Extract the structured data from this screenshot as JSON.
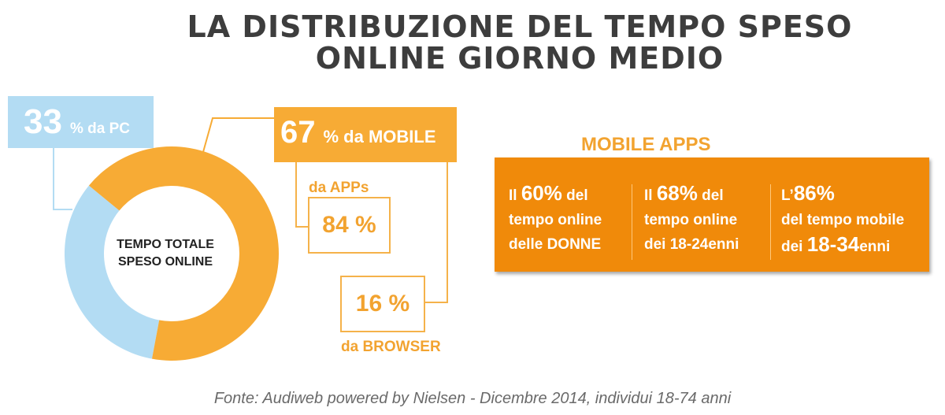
{
  "title": {
    "line1": "LA DISTRIBUZIONE DEL TEMPO SPESO",
    "line2": "ONLINE GIORNO MEDIO"
  },
  "chart_data": [
    {
      "type": "pie",
      "subtype": "donut",
      "center_label_line1": "TEMPO TOTALE",
      "center_label_line2": "SPESO ONLINE",
      "slices": [
        {
          "label": "% da PC",
          "value": 33,
          "value_text": "33",
          "color": "#b3dcf3"
        },
        {
          "label": "% da MOBILE",
          "value": 67,
          "value_text": "67",
          "color": "#f7ab35"
        }
      ]
    },
    {
      "type": "table",
      "parent": "da MOBILE",
      "rows": [
        {
          "label": "da APPs",
          "value": 84,
          "value_text": "84 %"
        },
        {
          "label": "da BROWSER",
          "value": 16,
          "value_text": "16 %"
        }
      ]
    }
  ],
  "mobile_apps": {
    "title": "MOBILE APPS",
    "stats": [
      {
        "prefix": "Il ",
        "value": "60%",
        "suffix": " del",
        "line2": "tempo online",
        "line3": "delle DONNE"
      },
      {
        "prefix": "Il ",
        "value": "68%",
        "suffix": " del",
        "line2": "tempo online",
        "line3": "dei 18-24enni"
      },
      {
        "prefix": "L’",
        "value": "86%",
        "line2": "del tempo mobile",
        "line3_pre": "dei ",
        "line3_bold": "18-34",
        "line3_post": "enni"
      }
    ]
  },
  "source": "Fonte: Audiweb powered by Nielsen - Dicembre 2014, individui 18-74 anni",
  "colors": {
    "pc": "#b3dcf3",
    "mobile": "#f7ab35",
    "apps_box": "#f08a0a",
    "title": "#3d3d3d"
  }
}
